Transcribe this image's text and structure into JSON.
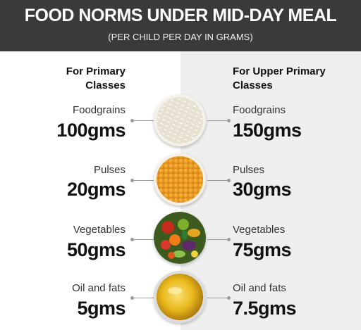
{
  "header": {
    "title": "FOOD NORMS UNDER MID-DAY MEAL",
    "subtitle": "(PER CHILD PER DAY IN GRAMS)"
  },
  "primary": {
    "heading_line1": "For Primary",
    "heading_line2": "Classes"
  },
  "upper_primary": {
    "heading_line1": "For Upper Primary",
    "heading_line2": "Classes"
  },
  "rows": [
    {
      "item": "Foodgrains",
      "primary": "100gms",
      "upper": "150gms",
      "icon": "rice-bowl-icon"
    },
    {
      "item": "Pulses",
      "primary": "20gms",
      "upper": "30gms",
      "icon": "pulses-bowl-icon"
    },
    {
      "item": "Vegetables",
      "primary": "50gms",
      "upper": "75gms",
      "icon": "vegetables-bowl-icon"
    },
    {
      "item": "Oil and fats",
      "primary": "5gms",
      "upper": "7.5gms",
      "icon": "oil-bowl-icon"
    }
  ],
  "colors": {
    "header_bg": "#3a3a3a",
    "right_panel_bg": "#efefef"
  }
}
